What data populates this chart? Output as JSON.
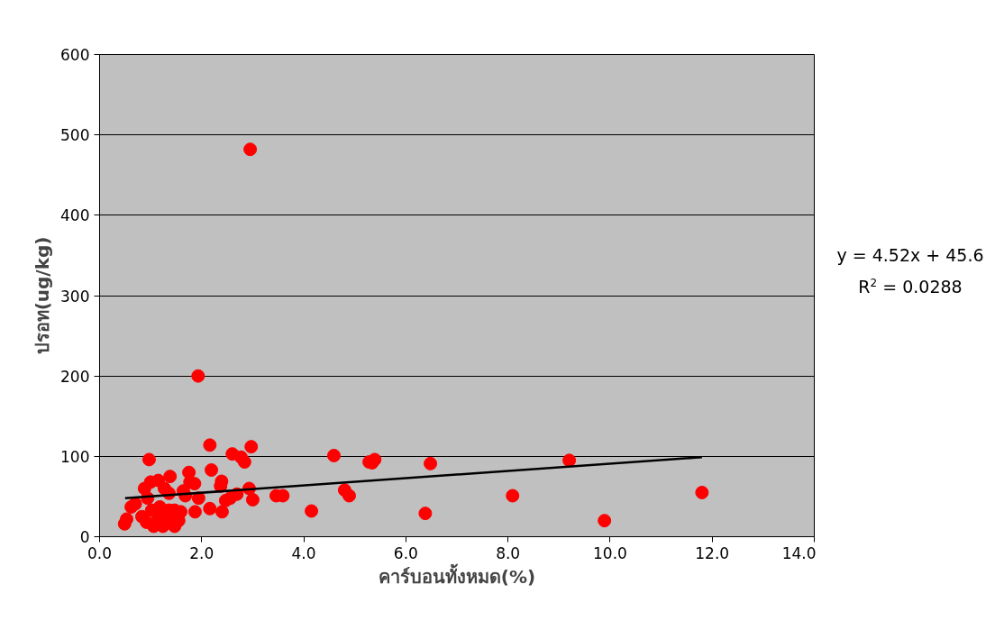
{
  "chart_data": {
    "type": "scatter",
    "xlabel": "คาร์บอนทั้งหมด(%)",
    "ylabel": "ปรอท(ug/kg)",
    "xlim": [
      0,
      14
    ],
    "ylim": [
      0,
      600
    ],
    "xticks": [
      {
        "value": 0,
        "label": "0.0"
      },
      {
        "value": 2,
        "label": "2.0"
      },
      {
        "value": 4,
        "label": "4.0"
      },
      {
        "value": 6,
        "label": "6.0"
      },
      {
        "value": 8,
        "label": "8.0"
      },
      {
        "value": 10,
        "label": "10.0"
      },
      {
        "value": 12,
        "label": "12.0"
      },
      {
        "value": 14,
        "label": "14.0"
      }
    ],
    "yticks": [
      0,
      100,
      200,
      300,
      400,
      500,
      600
    ],
    "grid": "y",
    "annotations": [
      "y = 4.52x + 45.6",
      "R$^{2}$ = 0.0288"
    ],
    "series": [
      {
        "marker": "circle",
        "color": "#ff0000",
        "x": [
          0.49,
          0.53,
          2.95,
          1.93,
          0.97,
          2.16,
          2.97,
          2.19,
          2.6,
          2.77,
          2.84,
          2.39,
          2.37,
          1.38,
          1.75,
          4.59,
          5.28,
          5.34,
          5.39,
          6.48,
          9.2,
          11.8,
          9.89,
          8.09,
          6.38,
          4.15,
          4.8,
          4.89,
          3.46,
          3.59,
          0.62,
          0.88,
          1.0,
          1.15,
          1.27,
          1.36,
          0.94,
          0.7,
          1.02,
          1.18,
          1.36,
          1.47,
          1.59,
          0.92,
          1.06,
          1.24,
          1.47,
          1.55,
          1.36,
          1.15,
          0.83,
          1.64,
          1.77,
          1.86,
          1.68,
          1.94,
          1.87,
          2.16,
          2.4,
          2.47,
          2.56,
          2.69,
          2.93,
          3.0
        ],
        "values": [
          16,
          22,
          482,
          200,
          96,
          114,
          112,
          83,
          103,
          99,
          93,
          69,
          63,
          75,
          80,
          101,
          93,
          92,
          96,
          91,
          95,
          55,
          20,
          51,
          29,
          32,
          58,
          51,
          51,
          51,
          37,
          60,
          68,
          70,
          60,
          54,
          48,
          41,
          33,
          37,
          33,
          33,
          31,
          18,
          13,
          13,
          13,
          20,
          22,
          24,
          25,
          57,
          68,
          66,
          51,
          48,
          31,
          35,
          31,
          45,
          48,
          53,
          60,
          46
        ]
      },
      {
        "type": "line",
        "color": "#000000",
        "x": [
          0.5,
          11.8
        ],
        "values": [
          48,
          99
        ]
      }
    ]
  }
}
